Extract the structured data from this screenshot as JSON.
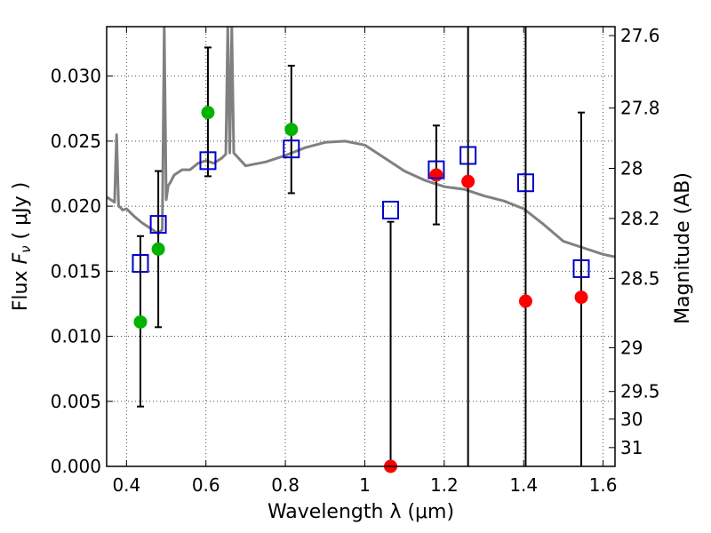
{
  "chart_data": {
    "type": "scatter",
    "xlabel": "Wavelength  λ (μm)",
    "ylabel_prefix": "Flux  ",
    "ylabel_symbol": "F",
    "ylabel_sub": "ν",
    "ylabel_unit": "  ( μJy )",
    "ylabel_right": "Magnitude (AB)",
    "xlim": [
      0.35,
      1.63
    ],
    "ylim": [
      0.0,
      0.0338
    ],
    "grid": true,
    "x_ticks": [
      0.4,
      0.6,
      0.8,
      1.0,
      1.2,
      1.4,
      1.6
    ],
    "x_tick_labels": [
      "0.4",
      "0.6",
      "0.8",
      "1",
      "1.2",
      "1.4",
      "1.6"
    ],
    "y_ticks": [
      0.0,
      0.005,
      0.01,
      0.015,
      0.02,
      0.025,
      0.03
    ],
    "y_tick_labels": [
      "0.000",
      "0.005",
      "0.010",
      "0.015",
      "0.020",
      "0.025",
      "0.030"
    ],
    "right_ticks": [
      27.6,
      27.8,
      28.0,
      28.2,
      28.5,
      29.0,
      29.5,
      30.0,
      31.0
    ],
    "right_tick_labels": [
      "27.6",
      "27.8",
      "28",
      "28.2",
      "28.5",
      "29",
      "29.5",
      "30",
      "31"
    ],
    "model_spectrum": {
      "name": "model SED",
      "color": "#808080",
      "x": [
        0.35,
        0.37,
        0.375,
        0.38,
        0.385,
        0.39,
        0.4,
        0.42,
        0.44,
        0.46,
        0.48,
        0.49,
        0.495,
        0.5,
        0.505,
        0.51,
        0.52,
        0.54,
        0.56,
        0.58,
        0.6,
        0.62,
        0.64,
        0.65,
        0.655,
        0.66,
        0.665,
        0.67,
        0.7,
        0.75,
        0.8,
        0.85,
        0.9,
        0.95,
        1.0,
        1.05,
        1.1,
        1.15,
        1.2,
        1.25,
        1.3,
        1.35,
        1.4,
        1.45,
        1.5,
        1.55,
        1.6,
        1.63
      ],
      "y": [
        0.0207,
        0.0203,
        0.0255,
        0.02,
        0.0199,
        0.0197,
        0.0198,
        0.0192,
        0.0187,
        0.0183,
        0.0179,
        0.0182,
        0.0338,
        0.0205,
        0.0216,
        0.0218,
        0.0224,
        0.0228,
        0.0228,
        0.0233,
        0.0235,
        0.0233,
        0.0237,
        0.024,
        0.0338,
        0.0241,
        0.0338,
        0.0241,
        0.0231,
        0.0234,
        0.0239,
        0.0245,
        0.0249,
        0.025,
        0.0247,
        0.0237,
        0.0227,
        0.022,
        0.0215,
        0.0213,
        0.0208,
        0.0204,
        0.0198,
        0.0186,
        0.0173,
        0.0168,
        0.0163,
        0.0161
      ]
    },
    "series": [
      {
        "name": "observed (green)",
        "color": "#00b300",
        "marker": "circle",
        "x": [
          0.435,
          0.48,
          0.605,
          0.815
        ],
        "y": [
          0.0111,
          0.0167,
          0.0272,
          0.0259
        ]
      },
      {
        "name": "observed (red)",
        "color": "#ff0000",
        "marker": "circle",
        "x": [
          1.065,
          1.18,
          1.26,
          1.405,
          1.545
        ],
        "y": [
          0.0,
          0.0224,
          0.0219,
          0.0127,
          0.013
        ]
      },
      {
        "name": "model photometry",
        "color": "#0000cc",
        "marker": "square",
        "x": [
          0.435,
          0.48,
          0.605,
          0.815,
          1.065,
          1.18,
          1.26,
          1.405,
          1.545
        ],
        "y": [
          0.0156,
          0.0186,
          0.0235,
          0.0244,
          0.0197,
          0.0228,
          0.0239,
          0.0218,
          0.0152
        ]
      }
    ],
    "error_bars": {
      "color": "#000000",
      "x": [
        0.435,
        0.48,
        0.605,
        0.815,
        1.065,
        1.18,
        1.26,
        1.405,
        1.545
      ],
      "low": [
        0.0046,
        0.0107,
        0.0223,
        0.021,
        0.0,
        0.0186,
        0.0,
        0.0,
        0.0
      ],
      "high": [
        0.0177,
        0.0227,
        0.0322,
        0.0308,
        0.0188,
        0.0262,
        0.0338,
        0.0338,
        0.0272
      ],
      "capped_low": [
        true,
        true,
        true,
        true,
        false,
        true,
        false,
        false,
        false
      ],
      "capped_high": [
        true,
        true,
        true,
        true,
        true,
        true,
        false,
        false,
        true
      ]
    }
  }
}
